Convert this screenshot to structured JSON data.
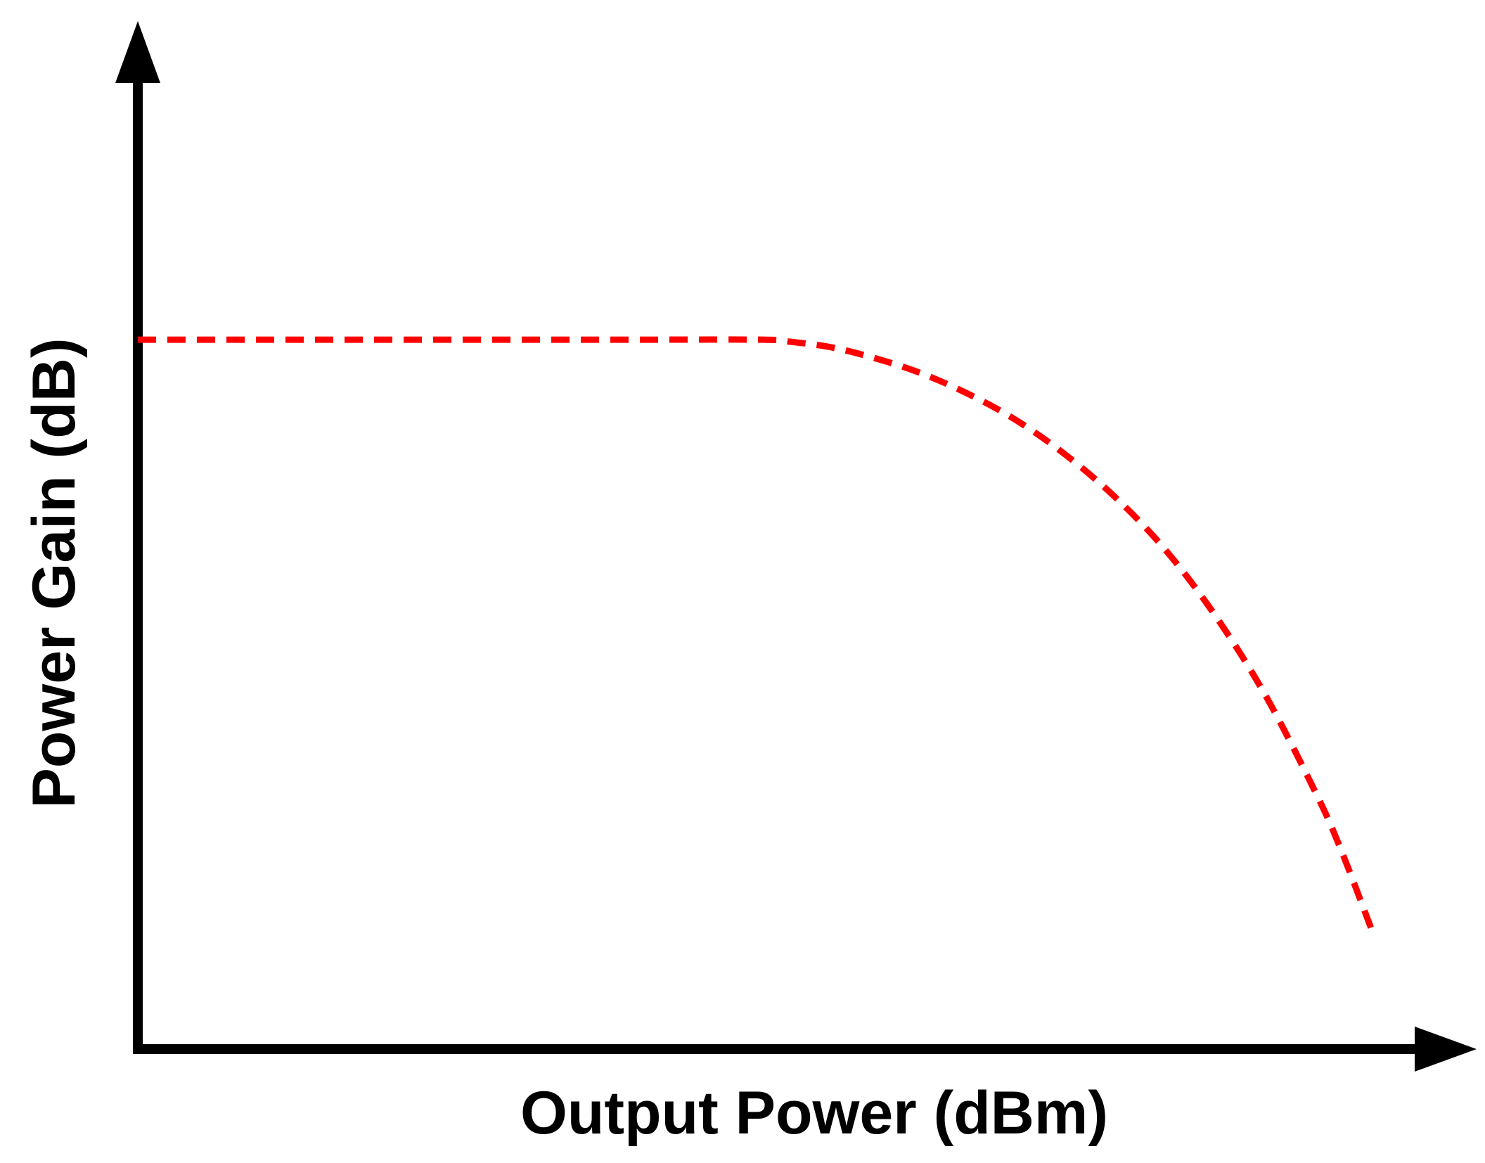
{
  "chart_data": {
    "type": "line",
    "title": "",
    "xlabel": "Output Power (dBm)",
    "ylabel": "Power Gain (dB)",
    "xlim": [
      0,
      100
    ],
    "ylim": [
      0,
      100
    ],
    "ticks_shown": false,
    "grid": false,
    "legend": "none",
    "series": [
      {
        "line_style": "dashed",
        "color": "#ff0000",
        "x": [
          0,
          10,
          20,
          30,
          40,
          50,
          52,
          55,
          58,
          62,
          66,
          70,
          74,
          78,
          82,
          86,
          90,
          94,
          96,
          98.5
        ],
        "y": [
          73,
          73,
          73,
          73,
          73,
          73,
          72.8,
          72.3,
          71.4,
          69.8,
          67.6,
          64.8,
          61.2,
          56.8,
          51.4,
          44.6,
          36.4,
          26.4,
          20.6,
          12.2
        ]
      }
    ]
  },
  "colors": {
    "axis": "#000000",
    "curve": "#ff0000",
    "background": "#ffffff"
  }
}
